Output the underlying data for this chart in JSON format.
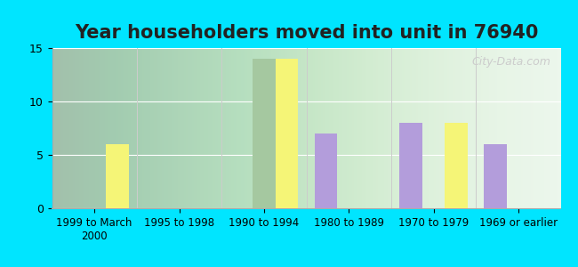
{
  "title": "Year householders moved into unit in 76940",
  "categories": [
    "1999 to March\n2000",
    "1995 to 1998",
    "1990 to 1994",
    "1980 to 1989",
    "1970 to 1979",
    "1969 or earlier"
  ],
  "white_non_hispanic": [
    0,
    0,
    0,
    7,
    8,
    6
  ],
  "other_race": [
    0,
    0,
    14,
    0,
    0,
    0
  ],
  "hispanic_or_latino": [
    6,
    0,
    14,
    0,
    8,
    0
  ],
  "white_color": "#b39ddb",
  "other_race_color": "#a5c8a0",
  "hispanic_color": "#f5f577",
  "background_outer": "#00e5ff",
  "background_inner": "#e8f5e9",
  "ylim": [
    0,
    15
  ],
  "yticks": [
    0,
    5,
    10,
    15
  ],
  "bar_width": 0.27,
  "title_fontsize": 15,
  "legend_fontsize": 10
}
